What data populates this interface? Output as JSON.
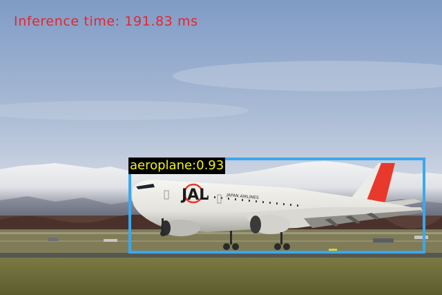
{
  "inference_text": "Inference time: 191.83 ms",
  "detection": {
    "label": "aeroplane:0.93",
    "box_color": "#3ba7ee",
    "label_text_color": "#f2f21a",
    "label_bg_color": "#000000"
  },
  "aircraft_livery": {
    "logo": "JAL",
    "fuselage_text": "JAPAN AIRLINES"
  },
  "colors": {
    "inference_text": "#e8242c",
    "sky_top": "#7f9bc6",
    "sky_bottom": "#d7dde6",
    "grass": "#6f6e3a",
    "tail_red": "#e83a2c"
  }
}
